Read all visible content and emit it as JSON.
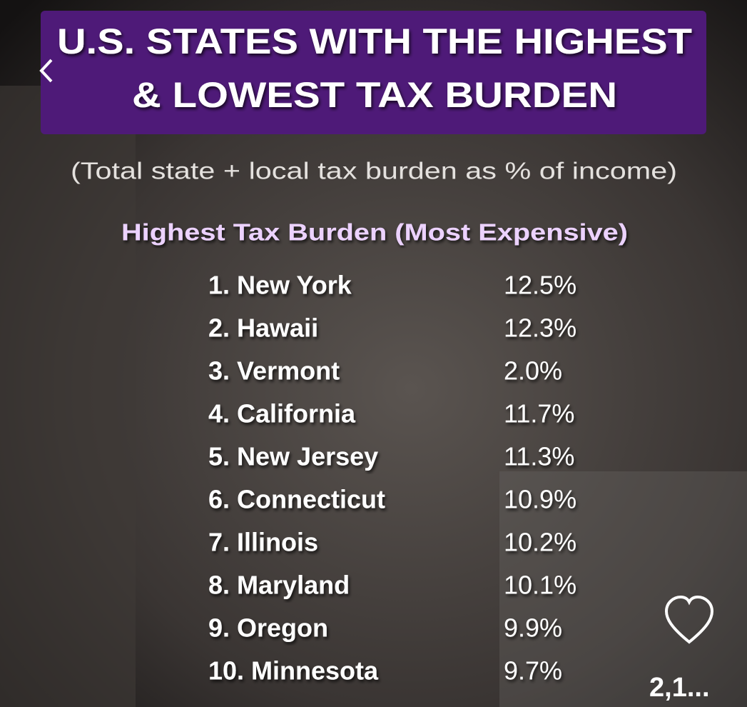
{
  "header": {
    "title_lines": [
      "U.S. STATES WITH THE HIGHEST",
      "& LOWEST TAX BURDEN"
    ],
    "subtitle": "(Total state + local tax burden as % of income)"
  },
  "section": {
    "heading": "Highest Tax Burden (Most Expensive)",
    "rows": [
      [
        "1. New York",
        "12.5%"
      ],
      [
        "2. Hawaii",
        "12.3%"
      ],
      [
        "3. Vermont",
        "2.0%"
      ],
      [
        "4. California",
        "11.7%"
      ],
      [
        "5. New Jersey",
        "11.3%"
      ],
      [
        "6. Connecticut",
        "10.9%"
      ],
      [
        "7. Illinois",
        "10.2%"
      ],
      [
        "8. Maryland",
        "10.1%"
      ],
      [
        "9. Oregon",
        "9.9%"
      ],
      [
        "10. Minnesota",
        "9.7%"
      ]
    ]
  },
  "ui": {
    "like_count": "2,1..."
  }
}
